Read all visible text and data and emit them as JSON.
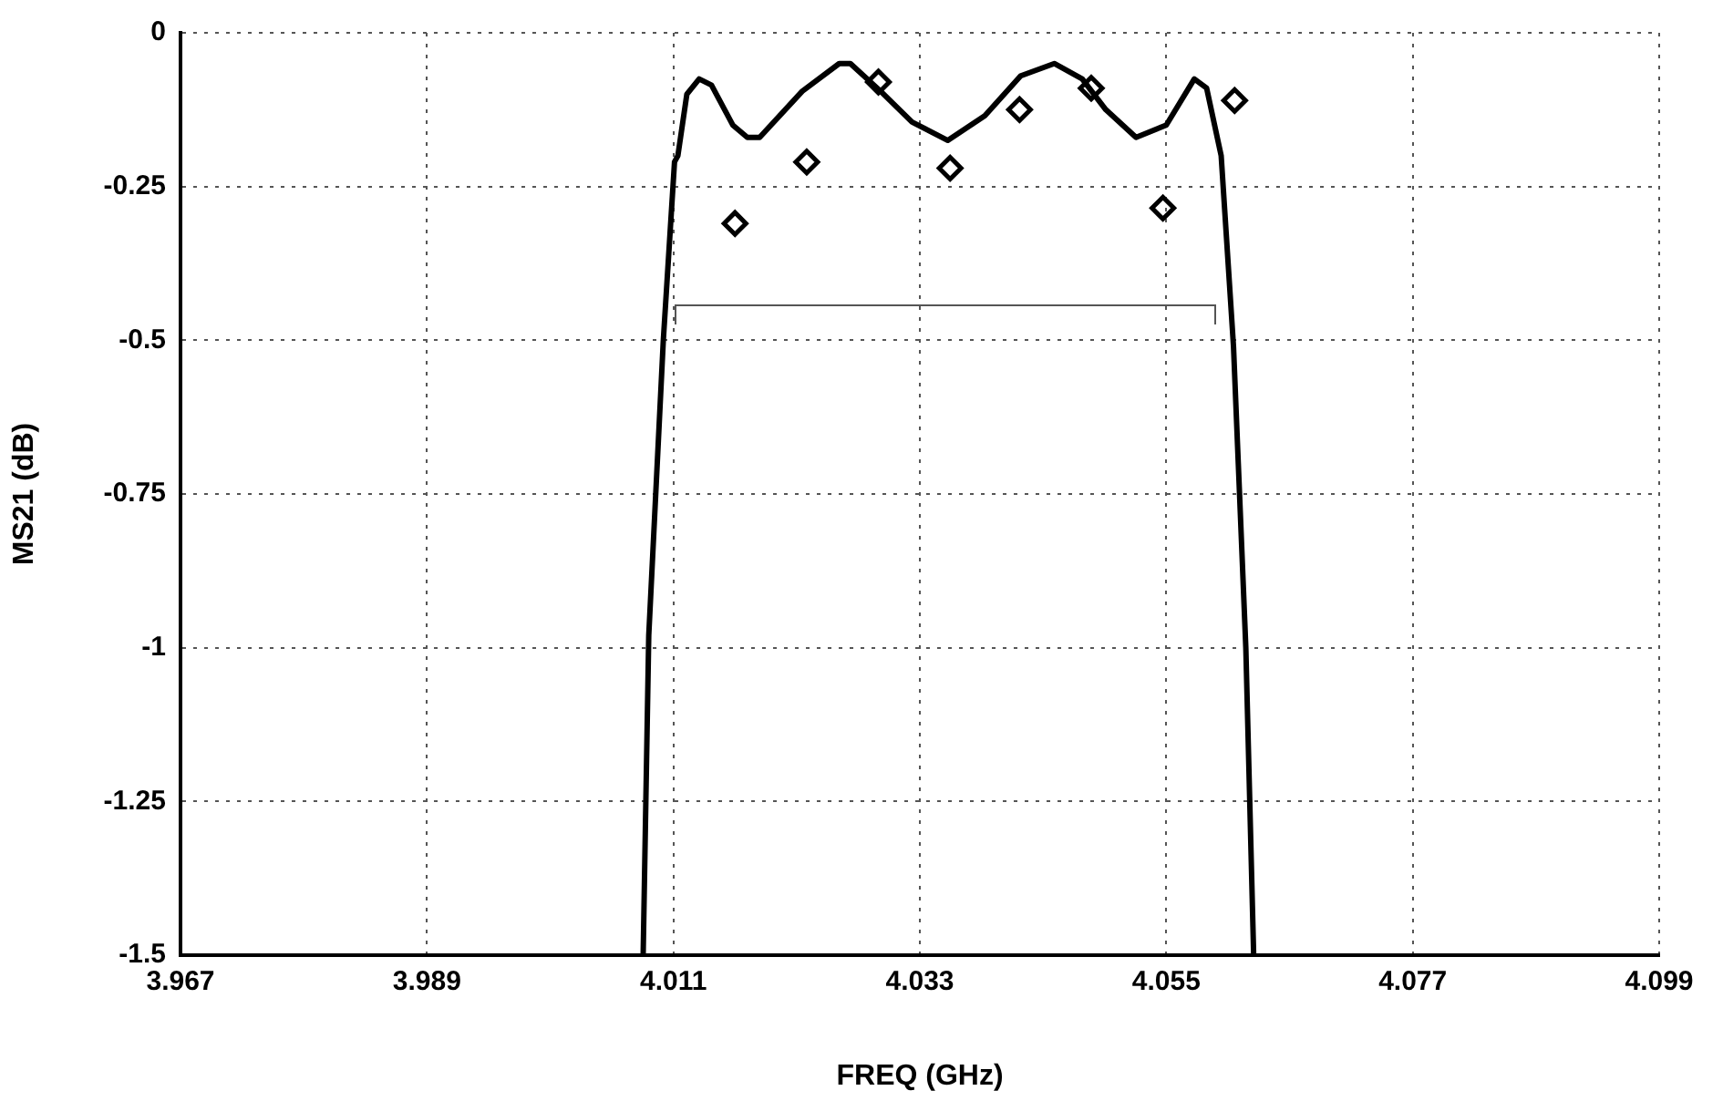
{
  "chart_data": {
    "type": "line",
    "xlabel": "FREQ (GHz)",
    "ylabel": "MS21 (dB)",
    "xlim": [
      3.967,
      4.099
    ],
    "xticks": [
      3.967,
      3.989,
      4.011,
      4.033,
      4.055,
      4.077,
      4.099
    ],
    "ylim": [
      -1.5,
      0
    ],
    "yticks": [
      -1.5,
      -1.25,
      -1,
      -0.75,
      -0.5,
      -0.25,
      0
    ],
    "grid": true,
    "series": [
      {
        "type": "line",
        "color": "#000000",
        "marker": "none",
        "line_style": "solid",
        "x": [
          4.0083,
          4.0088,
          4.0101,
          4.0111,
          4.0114,
          4.0122,
          4.0133,
          4.0144,
          4.0163,
          4.0176,
          4.0187,
          4.0225,
          4.0258,
          4.0268,
          4.0295,
          4.0323,
          4.0355,
          4.0388,
          4.042,
          4.045,
          4.0475,
          4.0496,
          4.0523,
          4.055,
          4.0575,
          4.0586,
          4.0599,
          4.061,
          4.0621,
          4.0628
        ],
        "values": [
          -1.5,
          -0.98,
          -0.5,
          -0.21,
          -0.2,
          -0.1,
          -0.075,
          -0.085,
          -0.15,
          -0.17,
          -0.17,
          -0.095,
          -0.05,
          -0.05,
          -0.095,
          -0.145,
          -0.175,
          -0.135,
          -0.07,
          -0.05,
          -0.075,
          -0.125,
          -0.17,
          -0.15,
          -0.075,
          -0.09,
          -0.2,
          -0.51,
          -1.0,
          -1.5
        ]
      },
      {
        "type": "scatter",
        "color": "#000000",
        "marker": "diamond",
        "x": [
          4.0165,
          4.0229,
          4.0293,
          4.0357,
          4.0419,
          4.0483,
          4.0547,
          4.0611
        ],
        "values": [
          -0.31,
          -0.21,
          -0.08,
          -0.22,
          -0.125,
          -0.09,
          -0.285,
          -0.11
        ]
      }
    ]
  }
}
